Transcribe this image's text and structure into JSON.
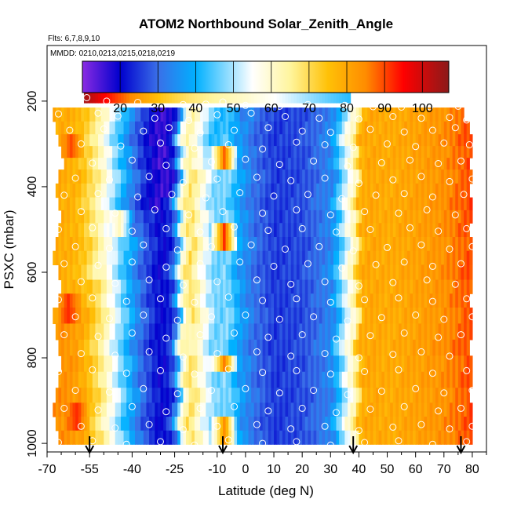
{
  "chart_data": {
    "type": "heatmap",
    "title": "ATOM2 Northbound Solar_Zenith_Angle",
    "flights_label": "Flts: 6,7,8,9,10",
    "dates_label": "MMDD: 0210,0213,0215,0218,0219",
    "xlabel": "Latitude (deg N)",
    "ylabel": "PSXC (mbar)",
    "xlim": [
      -70,
      85
    ],
    "ylim": [
      1020,
      70
    ],
    "x_ticks": [
      -70,
      -55,
      -40,
      -25,
      -10,
      0,
      10,
      20,
      30,
      40,
      50,
      60,
      70,
      80
    ],
    "x_tick_labels": [
      "-70",
      "-55",
      "-40",
      "-25",
      "-10",
      "0",
      "10",
      "20",
      "30",
      "40",
      "50",
      "60",
      "70",
      "80"
    ],
    "x_minor_ticks": [
      -65,
      -60,
      -50,
      -45,
      -35,
      -30,
      -20,
      -15,
      -5,
      5,
      15,
      25,
      35,
      45,
      55,
      65,
      75,
      85
    ],
    "y_ticks": [
      200,
      400,
      600,
      800,
      1000
    ],
    "y_tick_labels": [
      "200",
      "400",
      "600",
      "800",
      "1000"
    ],
    "colorbar": {
      "range": [
        10,
        107
      ],
      "ticks": [
        20,
        30,
        40,
        50,
        60,
        70,
        80,
        90,
        100
      ],
      "tick_labels": [
        "20",
        "30",
        "40",
        "50",
        "60",
        "70",
        "80",
        "90",
        "100"
      ],
      "colors": [
        "#8a2be2",
        "#0000cd",
        "#3a6fe8",
        "#00b0ff",
        "#ffffff",
        "#fff59d",
        "#ffc107",
        "#ff8c00",
        "#ff0000",
        "#8b1a1a"
      ],
      "color_stops": [
        10,
        20,
        30,
        40,
        55,
        65,
        75,
        85,
        95,
        107
      ]
    },
    "zenith_profile": {
      "latitude": [
        -66,
        -60,
        -56,
        -52,
        -48,
        -44,
        -40,
        -36,
        -32,
        -30,
        -27,
        -25,
        -23,
        -20,
        -16,
        -12,
        -10,
        -7,
        -3,
        3,
        10,
        20,
        30,
        33,
        36,
        38,
        40,
        43,
        50,
        60,
        70,
        76,
        80
      ],
      "value": [
        84,
        82,
        76,
        68,
        57,
        46,
        36,
        28,
        22,
        20,
        24,
        34,
        58,
        70,
        58,
        48,
        46,
        48,
        38,
        30,
        25,
        27,
        34,
        46,
        58,
        62,
        78,
        80,
        79,
        81,
        84,
        88,
        90
      ]
    },
    "top_band": {
      "pressure": 190,
      "latitude": [
        -57,
        -50,
        -40,
        -30,
        -20,
        -10,
        0,
        10,
        20,
        30,
        37
      ],
      "value": [
        104,
        95,
        84,
        74,
        68,
        64,
        60,
        55,
        50,
        45,
        42
      ]
    },
    "level_pressures": [
      230,
      265,
      290,
      320,
      345,
      375,
      410,
      440,
      470,
      500,
      535,
      565,
      600,
      635,
      665,
      700,
      740,
      775,
      815,
      850,
      890,
      920,
      955,
      985
    ],
    "level_edges": [
      [
        -68,
        77
      ],
      [
        -67,
        79
      ],
      [
        -66,
        80
      ],
      [
        -65,
        80
      ],
      [
        -64,
        79
      ],
      [
        -66,
        80
      ],
      [
        -67,
        79
      ],
      [
        -66,
        80
      ],
      [
        -65,
        80
      ],
      [
        -66,
        79
      ],
      [
        -67,
        80
      ],
      [
        -68,
        80
      ],
      [
        -66,
        80
      ],
      [
        -65,
        80
      ],
      [
        -66,
        79
      ],
      [
        -68,
        80
      ],
      [
        -67,
        80
      ],
      [
        -66,
        79
      ],
      [
        -65,
        80
      ],
      [
        -66,
        80
      ],
      [
        -67,
        79
      ],
      [
        -68,
        80
      ],
      [
        -67,
        80
      ],
      [
        -66,
        80
      ]
    ],
    "anomalies": [
      {
        "latitude": -63,
        "pressure_range": [
          660,
          720
        ],
        "value": 92
      },
      {
        "latitude": -62,
        "pressure_range": [
          280,
          330
        ],
        "value": 90
      },
      {
        "latitude": -60,
        "pressure_range": [
          900,
          960
        ],
        "value": 92
      },
      {
        "latitude": -8,
        "pressure_range": [
          300,
          370
        ],
        "value": 88
      },
      {
        "latitude": -8,
        "pressure_range": [
          500,
          560
        ],
        "value": 92
      },
      {
        "latitude": -8,
        "pressure_range": [
          780,
          830
        ],
        "value": 86
      },
      {
        "latitude": -8,
        "pressure_range": [
          950,
          1000
        ],
        "value": 84
      },
      {
        "latitude": -20,
        "pressure_range": [
          710,
          780
        ],
        "value": 62
      },
      {
        "latitude": -45,
        "pressure_range": [
          450,
          520
        ],
        "value": 62
      }
    ],
    "profile_arrows_latitude": [
      -55,
      -8,
      38,
      76
    ],
    "sample_points": [
      [
        -56,
        192
      ],
      [
        -49,
        200
      ],
      [
        -38,
        203
      ],
      [
        -22,
        208
      ],
      [
        -14,
        207
      ],
      [
        -8,
        202
      ],
      [
        0,
        210
      ],
      [
        12,
        212
      ],
      [
        22,
        208
      ],
      [
        35,
        210
      ],
      [
        45,
        213
      ],
      [
        55,
        214
      ],
      [
        65,
        213
      ],
      [
        75,
        212
      ],
      [
        -66,
        230
      ],
      [
        -52,
        228
      ],
      [
        -45,
        235
      ],
      [
        -32,
        240
      ],
      [
        -20,
        245
      ],
      [
        -10,
        232
      ],
      [
        2,
        228
      ],
      [
        14,
        236
      ],
      [
        26,
        240
      ],
      [
        40,
        242
      ],
      [
        52,
        236
      ],
      [
        62,
        240
      ],
      [
        72,
        238
      ],
      [
        78,
        244
      ],
      [
        -62,
        268
      ],
      [
        -50,
        265
      ],
      [
        -36,
        270
      ],
      [
        -27,
        262
      ],
      [
        -16,
        274
      ],
      [
        -4,
        268
      ],
      [
        8,
        262
      ],
      [
        20,
        270
      ],
      [
        30,
        273
      ],
      [
        44,
        266
      ],
      [
        56,
        272
      ],
      [
        66,
        268
      ],
      [
        74,
        262
      ],
      [
        -58,
        300
      ],
      [
        -44,
        305
      ],
      [
        -30,
        298
      ],
      [
        -18,
        310
      ],
      [
        -6,
        302
      ],
      [
        6,
        312
      ],
      [
        18,
        296
      ],
      [
        28,
        302
      ],
      [
        38,
        308
      ],
      [
        50,
        300
      ],
      [
        60,
        306
      ],
      [
        70,
        298
      ],
      [
        79,
        302
      ],
      [
        -66,
        340
      ],
      [
        -54,
        345
      ],
      [
        -40,
        338
      ],
      [
        -28,
        350
      ],
      [
        -12,
        342
      ],
      [
        0,
        336
      ],
      [
        12,
        348
      ],
      [
        24,
        340
      ],
      [
        36,
        352
      ],
      [
        48,
        344
      ],
      [
        58,
        338
      ],
      [
        68,
        346
      ],
      [
        76,
        340
      ],
      [
        -60,
        380
      ],
      [
        -48,
        384
      ],
      [
        -34,
        376
      ],
      [
        -22,
        390
      ],
      [
        -10,
        382
      ],
      [
        4,
        378
      ],
      [
        16,
        386
      ],
      [
        28,
        380
      ],
      [
        40,
        392
      ],
      [
        52,
        384
      ],
      [
        62,
        376
      ],
      [
        72,
        388
      ],
      [
        80,
        382
      ],
      [
        -64,
        420
      ],
      [
        -52,
        416
      ],
      [
        -38,
        424
      ],
      [
        -26,
        418
      ],
      [
        -14,
        426
      ],
      [
        -2,
        414
      ],
      [
        10,
        422
      ],
      [
        22,
        418
      ],
      [
        34,
        428
      ],
      [
        46,
        420
      ],
      [
        56,
        416
      ],
      [
        66,
        424
      ],
      [
        77,
        418
      ],
      [
        -58,
        458
      ],
      [
        -46,
        462
      ],
      [
        -32,
        454
      ],
      [
        -20,
        466
      ],
      [
        -8,
        458
      ],
      [
        6,
        462
      ],
      [
        18,
        454
      ],
      [
        30,
        466
      ],
      [
        42,
        458
      ],
      [
        54,
        462
      ],
      [
        64,
        454
      ],
      [
        74,
        466
      ],
      [
        -66,
        500
      ],
      [
        -54,
        496
      ],
      [
        -40,
        504
      ],
      [
        -28,
        498
      ],
      [
        -16,
        506
      ],
      [
        -4,
        494
      ],
      [
        8,
        502
      ],
      [
        20,
        498
      ],
      [
        32,
        506
      ],
      [
        44,
        500
      ],
      [
        58,
        496
      ],
      [
        68,
        504
      ],
      [
        78,
        498
      ],
      [
        -60,
        540
      ],
      [
        -48,
        544
      ],
      [
        -36,
        536
      ],
      [
        -24,
        548
      ],
      [
        -12,
        540
      ],
      [
        2,
        536
      ],
      [
        14,
        546
      ],
      [
        26,
        540
      ],
      [
        38,
        550
      ],
      [
        50,
        542
      ],
      [
        62,
        536
      ],
      [
        72,
        546
      ],
      [
        80,
        540
      ],
      [
        -64,
        580
      ],
      [
        -52,
        584
      ],
      [
        -40,
        576
      ],
      [
        -28,
        588
      ],
      [
        -16,
        580
      ],
      [
        -2,
        576
      ],
      [
        10,
        586
      ],
      [
        22,
        580
      ],
      [
        34,
        590
      ],
      [
        46,
        582
      ],
      [
        56,
        576
      ],
      [
        66,
        586
      ],
      [
        76,
        580
      ],
      [
        -58,
        622
      ],
      [
        -46,
        626
      ],
      [
        -34,
        618
      ],
      [
        -22,
        630
      ],
      [
        -10,
        622
      ],
      [
        4,
        618
      ],
      [
        16,
        628
      ],
      [
        28,
        622
      ],
      [
        40,
        632
      ],
      [
        52,
        624
      ],
      [
        64,
        618
      ],
      [
        74,
        628
      ],
      [
        -66,
        664
      ],
      [
        -54,
        660
      ],
      [
        -42,
        668
      ],
      [
        -30,
        662
      ],
      [
        -18,
        670
      ],
      [
        -6,
        658
      ],
      [
        6,
        666
      ],
      [
        18,
        662
      ],
      [
        30,
        670
      ],
      [
        42,
        664
      ],
      [
        54,
        660
      ],
      [
        66,
        668
      ],
      [
        78,
        662
      ],
      [
        -60,
        704
      ],
      [
        -48,
        708
      ],
      [
        -36,
        700
      ],
      [
        -24,
        712
      ],
      [
        -12,
        704
      ],
      [
        0,
        700
      ],
      [
        12,
        710
      ],
      [
        24,
        704
      ],
      [
        36,
        714
      ],
      [
        48,
        706
      ],
      [
        60,
        700
      ],
      [
        70,
        710
      ],
      [
        80,
        704
      ],
      [
        -64,
        746
      ],
      [
        -52,
        750
      ],
      [
        -40,
        742
      ],
      [
        -28,
        754
      ],
      [
        -16,
        746
      ],
      [
        -4,
        742
      ],
      [
        8,
        752
      ],
      [
        20,
        746
      ],
      [
        32,
        756
      ],
      [
        44,
        748
      ],
      [
        56,
        742
      ],
      [
        68,
        752
      ],
      [
        76,
        746
      ],
      [
        -58,
        790
      ],
      [
        -46,
        794
      ],
      [
        -34,
        786
      ],
      [
        -22,
        798
      ],
      [
        -10,
        790
      ],
      [
        4,
        786
      ],
      [
        16,
        796
      ],
      [
        28,
        790
      ],
      [
        40,
        800
      ],
      [
        52,
        792
      ],
      [
        62,
        786
      ],
      [
        72,
        796
      ],
      [
        -66,
        832
      ],
      [
        -54,
        828
      ],
      [
        -42,
        836
      ],
      [
        -30,
        830
      ],
      [
        -18,
        838
      ],
      [
        -6,
        826
      ],
      [
        6,
        834
      ],
      [
        18,
        830
      ],
      [
        30,
        838
      ],
      [
        42,
        832
      ],
      [
        54,
        828
      ],
      [
        66,
        836
      ],
      [
        78,
        830
      ],
      [
        -60,
        876
      ],
      [
        -48,
        880
      ],
      [
        -36,
        872
      ],
      [
        -24,
        884
      ],
      [
        -12,
        876
      ],
      [
        0,
        872
      ],
      [
        12,
        882
      ],
      [
        24,
        876
      ],
      [
        36,
        886
      ],
      [
        48,
        878
      ],
      [
        60,
        872
      ],
      [
        70,
        882
      ],
      [
        80,
        876
      ],
      [
        -64,
        918
      ],
      [
        -52,
        922
      ],
      [
        -40,
        914
      ],
      [
        -28,
        926
      ],
      [
        -16,
        918
      ],
      [
        -4,
        914
      ],
      [
        8,
        924
      ],
      [
        20,
        918
      ],
      [
        32,
        928
      ],
      [
        44,
        920
      ],
      [
        56,
        914
      ],
      [
        68,
        924
      ],
      [
        76,
        918
      ],
      [
        -58,
        960
      ],
      [
        -46,
        964
      ],
      [
        -34,
        956
      ],
      [
        -22,
        968
      ],
      [
        -10,
        960
      ],
      [
        4,
        956
      ],
      [
        16,
        966
      ],
      [
        28,
        960
      ],
      [
        40,
        970
      ],
      [
        52,
        962
      ],
      [
        62,
        956
      ],
      [
        72,
        966
      ],
      [
        80,
        960
      ],
      [
        -66,
        998
      ],
      [
        -54,
        994
      ],
      [
        -42,
        1002
      ],
      [
        -30,
        996
      ],
      [
        -18,
        1004
      ],
      [
        -6,
        992
      ],
      [
        6,
        1000
      ],
      [
        18,
        996
      ],
      [
        30,
        1004
      ],
      [
        42,
        998
      ],
      [
        54,
        994
      ],
      [
        66,
        1002
      ],
      [
        78,
        996
      ]
    ]
  }
}
